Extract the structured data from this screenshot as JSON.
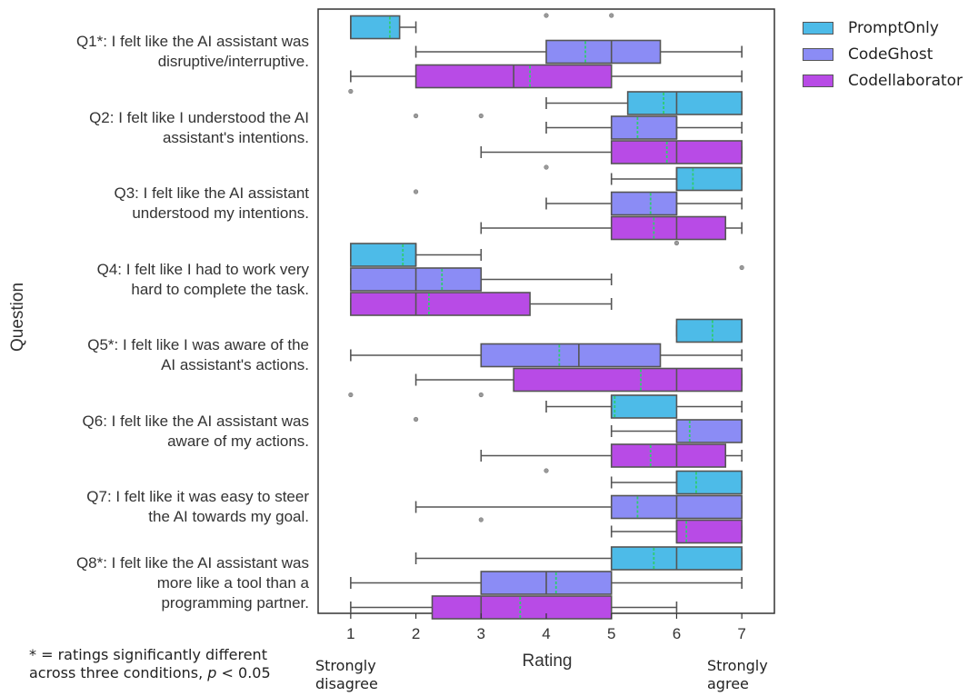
{
  "legend": [
    {
      "label": "PromptOnly",
      "color": "#4dbbe8"
    },
    {
      "label": "CodeGhost",
      "color": "#8b8cf5"
    },
    {
      "label": "Codellaborator",
      "color": "#b84be6"
    }
  ],
  "footnote": {
    "line1": "* = ratings significantly different",
    "line2_prefix": "across three conditions, ",
    "line2_p": "p",
    "line2_suffix": " < 0.05"
  },
  "scale_ends": {
    "left_line1": "Strongly",
    "left_line2": "disagree",
    "right_line1": "Strongly",
    "right_line2": "agree"
  },
  "chart_data": {
    "type": "box",
    "xlabel": "Rating",
    "ylabel": "Question",
    "xlim": [
      0.5,
      7.5
    ],
    "xticks": [
      1,
      2,
      3,
      4,
      5,
      6,
      7
    ],
    "mean_marker_color": "#2ecc71",
    "series_names": [
      "PromptOnly",
      "CodeGhost",
      "Codellaborator"
    ],
    "questions": [
      {
        "label_lines": [
          "Q1*: I felt like the AI assistant was",
          "disruptive/interruptive."
        ],
        "boxes": [
          {
            "whislo": 1,
            "q1": 1,
            "med": 1,
            "q3": 1.75,
            "whishi": 2,
            "mean": 1.6,
            "fliers": [
              4,
              5
            ]
          },
          {
            "whislo": 2,
            "q1": 4,
            "med": 5,
            "q3": 5.75,
            "whishi": 7,
            "mean": 4.6,
            "fliers": []
          },
          {
            "whislo": 1,
            "q1": 2,
            "med": 3.5,
            "q3": 5,
            "whishi": 7,
            "mean": 3.75,
            "fliers": []
          }
        ]
      },
      {
        "label_lines": [
          "Q2: I felt like I understood the AI",
          "assistant's intentions."
        ],
        "boxes": [
          {
            "whislo": 4,
            "q1": 5.25,
            "med": 6,
            "q3": 7,
            "whishi": 7,
            "mean": 5.8,
            "fliers": [
              1
            ]
          },
          {
            "whislo": 4,
            "q1": 5,
            "med": 6,
            "q3": 6,
            "whishi": 7,
            "mean": 5.4,
            "fliers": [
              2,
              3
            ]
          },
          {
            "whislo": 3,
            "q1": 5,
            "med": 6,
            "q3": 7,
            "whishi": 7,
            "mean": 5.85,
            "fliers": []
          }
        ]
      },
      {
        "label_lines": [
          "Q3: I felt like the AI assistant",
          "understood my intentions."
        ],
        "boxes": [
          {
            "whislo": 5,
            "q1": 6,
            "med": 6,
            "q3": 7,
            "whishi": 7,
            "mean": 6.25,
            "fliers": [
              4
            ]
          },
          {
            "whislo": 4,
            "q1": 5,
            "med": 6,
            "q3": 6,
            "whishi": 7,
            "mean": 5.6,
            "fliers": [
              2
            ]
          },
          {
            "whislo": 3,
            "q1": 5,
            "med": 6,
            "q3": 6.75,
            "whishi": 7,
            "mean": 5.65,
            "fliers": []
          }
        ]
      },
      {
        "label_lines": [
          "Q4: I felt like I had to work very",
          "hard to complete the task."
        ],
        "boxes": [
          {
            "whislo": 1,
            "q1": 1,
            "med": 2,
            "q3": 2,
            "whishi": 3,
            "mean": 1.8,
            "fliers": [
              6
            ]
          },
          {
            "whislo": 1,
            "q1": 1,
            "med": 2,
            "q3": 3,
            "whishi": 5,
            "mean": 2.4,
            "fliers": [
              7
            ]
          },
          {
            "whislo": 1,
            "q1": 1,
            "med": 2,
            "q3": 3.75,
            "whishi": 5,
            "mean": 2.2,
            "fliers": []
          }
        ]
      },
      {
        "label_lines": [
          "Q5*: I felt like I was aware of the",
          "AI assistant's actions."
        ],
        "boxes": [
          {
            "whislo": 6,
            "q1": 6,
            "med": 7,
            "q3": 7,
            "whishi": 7,
            "mean": 6.55,
            "fliers": []
          },
          {
            "whislo": 1,
            "q1": 3,
            "med": 4.5,
            "q3": 5.75,
            "whishi": 7,
            "mean": 4.2,
            "fliers": []
          },
          {
            "whislo": 2,
            "q1": 3.5,
            "med": 6,
            "q3": 7,
            "whishi": 7,
            "mean": 5.45,
            "fliers": []
          }
        ]
      },
      {
        "label_lines": [
          "Q6: I felt like the AI assistant was",
          "aware of my actions."
        ],
        "boxes": [
          {
            "whislo": 4,
            "q1": 5,
            "med": 5,
            "q3": 6,
            "whishi": 7,
            "mean": 5.05,
            "fliers": [
              1,
              3
            ]
          },
          {
            "whislo": 5,
            "q1": 6,
            "med": 7,
            "q3": 7,
            "whishi": 7,
            "mean": 6.2,
            "fliers": [
              2
            ]
          },
          {
            "whislo": 3,
            "q1": 5,
            "med": 6,
            "q3": 6.75,
            "whishi": 7,
            "mean": 5.6,
            "fliers": []
          }
        ]
      },
      {
        "label_lines": [
          "Q7: I felt like it was easy to steer",
          "the AI towards my goal."
        ],
        "boxes": [
          {
            "whislo": 5,
            "q1": 6,
            "med": 6,
            "q3": 7,
            "whishi": 7,
            "mean": 6.3,
            "fliers": [
              4
            ]
          },
          {
            "whislo": 2,
            "q1": 5,
            "med": 6,
            "q3": 7,
            "whishi": 7,
            "mean": 5.4,
            "fliers": []
          },
          {
            "whislo": 5,
            "q1": 6,
            "med": 6,
            "q3": 7,
            "whishi": 7,
            "mean": 6.15,
            "fliers": [
              3
            ]
          }
        ]
      },
      {
        "label_lines": [
          "Q8*: I felt like the AI assistant was",
          "more like a tool than a",
          "programming partner."
        ],
        "boxes": [
          {
            "whislo": 2,
            "q1": 5,
            "med": 6,
            "q3": 7,
            "whishi": 7,
            "mean": 5.65,
            "fliers": []
          },
          {
            "whislo": 1,
            "q1": 3,
            "med": 4,
            "q3": 5,
            "whishi": 7,
            "mean": 4.15,
            "fliers": []
          },
          {
            "whislo": 1,
            "q1": 2.25,
            "med": 3,
            "q3": 5,
            "whishi": 6,
            "mean": 3.6,
            "fliers": []
          }
        ]
      }
    ]
  }
}
